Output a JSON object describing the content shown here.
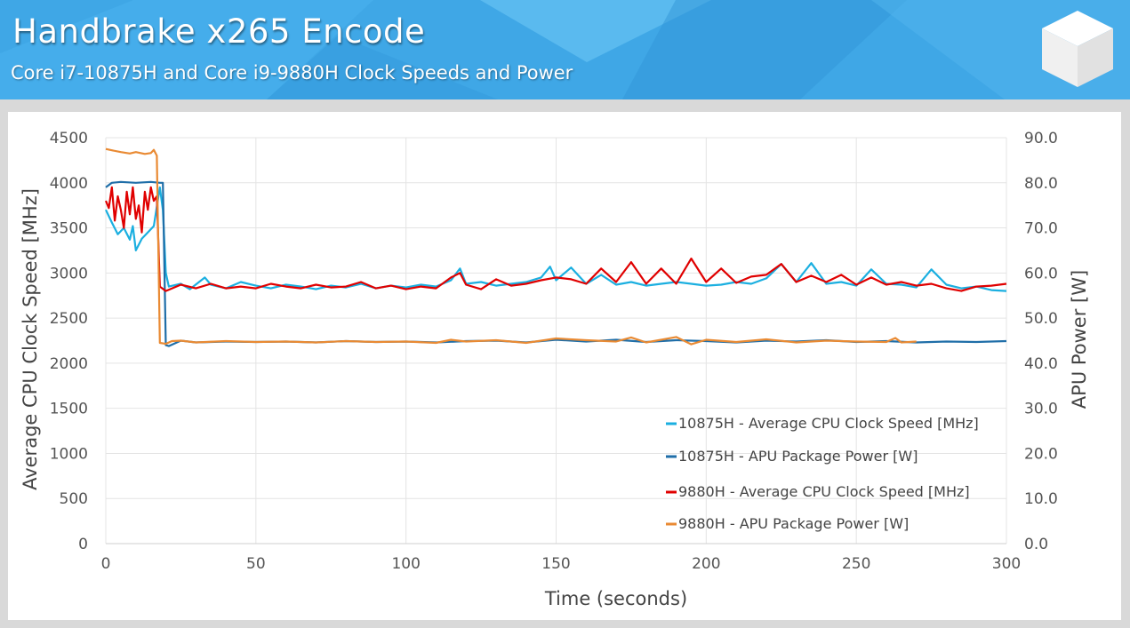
{
  "header": {
    "title": "Handbrake x265 Encode",
    "subtitle": "Core i7-10875H and Core i9-9880H Clock Speeds and Power",
    "logo_icon": "cube-icon"
  },
  "chart_data": {
    "type": "line",
    "xlabel": "Time (seconds)",
    "ylabel_left": "Average CPU Clock Speed [MHz]",
    "ylabel_right": "APU Power [W]",
    "xlim": [
      0,
      300
    ],
    "ylim_left": [
      0,
      4500
    ],
    "ylim_right": [
      0,
      90
    ],
    "xticks": [
      "0",
      "50",
      "100",
      "150",
      "200",
      "250",
      "300"
    ],
    "yticks_left": [
      "0",
      "500",
      "1000",
      "1500",
      "2000",
      "2500",
      "3000",
      "3500",
      "4000",
      "4500"
    ],
    "yticks_right": [
      "0.0",
      "10.0",
      "20.0",
      "30.0",
      "40.0",
      "50.0",
      "60.0",
      "70.0",
      "80.0",
      "90.0"
    ],
    "grid": true,
    "legend_position": "bottom-right",
    "series": [
      {
        "name": "10875H - Average CPU Clock Speed [MHz]",
        "axis": "left",
        "color": "#1bafe0",
        "points": [
          [
            0,
            3700
          ],
          [
            2,
            3560
          ],
          [
            4,
            3430
          ],
          [
            6,
            3500
          ],
          [
            8,
            3370
          ],
          [
            9,
            3520
          ],
          [
            10,
            3250
          ],
          [
            12,
            3380
          ],
          [
            14,
            3450
          ],
          [
            16,
            3520
          ],
          [
            18,
            3950
          ],
          [
            19,
            3700
          ],
          [
            20,
            3000
          ],
          [
            21,
            2850
          ],
          [
            25,
            2880
          ],
          [
            28,
            2820
          ],
          [
            33,
            2950
          ],
          [
            35,
            2870
          ],
          [
            40,
            2830
          ],
          [
            45,
            2900
          ],
          [
            50,
            2860
          ],
          [
            55,
            2830
          ],
          [
            60,
            2870
          ],
          [
            65,
            2850
          ],
          [
            70,
            2820
          ],
          [
            75,
            2860
          ],
          [
            80,
            2840
          ],
          [
            85,
            2880
          ],
          [
            90,
            2830
          ],
          [
            95,
            2860
          ],
          [
            100,
            2840
          ],
          [
            105,
            2870
          ],
          [
            110,
            2850
          ],
          [
            115,
            2920
          ],
          [
            118,
            3050
          ],
          [
            120,
            2880
          ],
          [
            125,
            2900
          ],
          [
            130,
            2860
          ],
          [
            135,
            2880
          ],
          [
            140,
            2900
          ],
          [
            145,
            2950
          ],
          [
            148,
            3070
          ],
          [
            150,
            2920
          ],
          [
            155,
            3060
          ],
          [
            160,
            2880
          ],
          [
            165,
            2980
          ],
          [
            170,
            2870
          ],
          [
            175,
            2900
          ],
          [
            180,
            2860
          ],
          [
            185,
            2880
          ],
          [
            190,
            2900
          ],
          [
            195,
            2880
          ],
          [
            200,
            2860
          ],
          [
            205,
            2870
          ],
          [
            210,
            2900
          ],
          [
            215,
            2880
          ],
          [
            220,
            2940
          ],
          [
            225,
            3100
          ],
          [
            230,
            2900
          ],
          [
            235,
            3110
          ],
          [
            240,
            2880
          ],
          [
            245,
            2900
          ],
          [
            250,
            2860
          ],
          [
            255,
            3040
          ],
          [
            260,
            2880
          ],
          [
            265,
            2870
          ],
          [
            270,
            2840
          ],
          [
            275,
            3040
          ],
          [
            280,
            2870
          ],
          [
            285,
            2830
          ],
          [
            290,
            2850
          ],
          [
            295,
            2810
          ],
          [
            300,
            2800
          ]
        ]
      },
      {
        "name": "10875H - APU Package Power [W]",
        "axis": "right",
        "color": "#1f6ea8",
        "points": [
          [
            0,
            79
          ],
          [
            2,
            80
          ],
          [
            5,
            80.2
          ],
          [
            10,
            80
          ],
          [
            15,
            80.2
          ],
          [
            18,
            80
          ],
          [
            19,
            80
          ],
          [
            20,
            44
          ],
          [
            21,
            43.8
          ],
          [
            25,
            45
          ],
          [
            30,
            44.6
          ],
          [
            40,
            44.8
          ],
          [
            50,
            44.7
          ],
          [
            60,
            44.8
          ],
          [
            70,
            44.6
          ],
          [
            80,
            44.9
          ],
          [
            90,
            44.7
          ],
          [
            100,
            44.8
          ],
          [
            110,
            44.6
          ],
          [
            120,
            44.9
          ],
          [
            130,
            45
          ],
          [
            140,
            44.6
          ],
          [
            150,
            45.2
          ],
          [
            160,
            44.8
          ],
          [
            170,
            45.2
          ],
          [
            180,
            44.7
          ],
          [
            190,
            45.1
          ],
          [
            200,
            44.9
          ],
          [
            210,
            44.6
          ],
          [
            220,
            45
          ],
          [
            230,
            44.8
          ],
          [
            240,
            45.1
          ],
          [
            250,
            44.7
          ],
          [
            260,
            44.9
          ],
          [
            270,
            44.6
          ],
          [
            280,
            44.8
          ],
          [
            290,
            44.7
          ],
          [
            300,
            44.9
          ]
        ]
      },
      {
        "name": "9880H - Average CPU Clock Speed [MHz]",
        "axis": "left",
        "color": "#e00000",
        "points": [
          [
            0,
            3800
          ],
          [
            1,
            3720
          ],
          [
            2,
            3950
          ],
          [
            3,
            3580
          ],
          [
            4,
            3850
          ],
          [
            5,
            3700
          ],
          [
            6,
            3500
          ],
          [
            7,
            3900
          ],
          [
            8,
            3650
          ],
          [
            9,
            3950
          ],
          [
            10,
            3600
          ],
          [
            11,
            3750
          ],
          [
            12,
            3450
          ],
          [
            13,
            3900
          ],
          [
            14,
            3700
          ],
          [
            15,
            3950
          ],
          [
            16,
            3800
          ],
          [
            17,
            3850
          ],
          [
            18,
            2850
          ],
          [
            20,
            2800
          ],
          [
            25,
            2870
          ],
          [
            30,
            2830
          ],
          [
            35,
            2880
          ],
          [
            40,
            2830
          ],
          [
            45,
            2850
          ],
          [
            50,
            2830
          ],
          [
            55,
            2880
          ],
          [
            60,
            2850
          ],
          [
            65,
            2830
          ],
          [
            70,
            2870
          ],
          [
            75,
            2840
          ],
          [
            80,
            2850
          ],
          [
            85,
            2900
          ],
          [
            90,
            2830
          ],
          [
            95,
            2860
          ],
          [
            100,
            2820
          ],
          [
            105,
            2850
          ],
          [
            110,
            2830
          ],
          [
            115,
            2950
          ],
          [
            118,
            3000
          ],
          [
            120,
            2870
          ],
          [
            125,
            2820
          ],
          [
            130,
            2930
          ],
          [
            135,
            2860
          ],
          [
            140,
            2880
          ],
          [
            145,
            2920
          ],
          [
            150,
            2950
          ],
          [
            155,
            2930
          ],
          [
            160,
            2880
          ],
          [
            165,
            3050
          ],
          [
            170,
            2900
          ],
          [
            175,
            3120
          ],
          [
            180,
            2880
          ],
          [
            185,
            3050
          ],
          [
            190,
            2880
          ],
          [
            195,
            3160
          ],
          [
            200,
            2900
          ],
          [
            205,
            3050
          ],
          [
            210,
            2890
          ],
          [
            215,
            2960
          ],
          [
            220,
            2980
          ],
          [
            225,
            3100
          ],
          [
            230,
            2900
          ],
          [
            235,
            2970
          ],
          [
            240,
            2900
          ],
          [
            245,
            2980
          ],
          [
            250,
            2870
          ],
          [
            255,
            2950
          ],
          [
            260,
            2870
          ],
          [
            265,
            2900
          ],
          [
            270,
            2860
          ],
          [
            275,
            2880
          ],
          [
            280,
            2830
          ],
          [
            285,
            2800
          ],
          [
            290,
            2850
          ],
          [
            295,
            2860
          ],
          [
            300,
            2880
          ]
        ]
      },
      {
        "name": "9880H - APU Package Power [W]",
        "axis": "right",
        "color": "#e98a33",
        "points": [
          [
            0,
            87.5
          ],
          [
            2,
            87.2
          ],
          [
            5,
            86.8
          ],
          [
            8,
            86.5
          ],
          [
            10,
            86.8
          ],
          [
            13,
            86.4
          ],
          [
            15,
            86.6
          ],
          [
            16,
            87.3
          ],
          [
            17,
            86
          ],
          [
            18,
            44.5
          ],
          [
            20,
            44.3
          ],
          [
            22,
            44.9
          ],
          [
            25,
            45
          ],
          [
            30,
            44.6
          ],
          [
            40,
            44.9
          ],
          [
            50,
            44.7
          ],
          [
            60,
            44.8
          ],
          [
            70,
            44.6
          ],
          [
            80,
            44.9
          ],
          [
            90,
            44.7
          ],
          [
            100,
            44.8
          ],
          [
            110,
            44.5
          ],
          [
            115,
            45.2
          ],
          [
            120,
            44.8
          ],
          [
            130,
            45.1
          ],
          [
            140,
            44.5
          ],
          [
            150,
            45.5
          ],
          [
            160,
            45.1
          ],
          [
            170,
            44.8
          ],
          [
            175,
            45.7
          ],
          [
            180,
            44.6
          ],
          [
            190,
            45.8
          ],
          [
            195,
            44.2
          ],
          [
            200,
            45.2
          ],
          [
            210,
            44.7
          ],
          [
            220,
            45.3
          ],
          [
            230,
            44.6
          ],
          [
            240,
            45
          ],
          [
            250,
            44.8
          ],
          [
            260,
            44.7
          ],
          [
            263,
            45.6
          ],
          [
            265,
            44.6
          ],
          [
            270,
            44.8
          ]
        ]
      }
    ]
  }
}
